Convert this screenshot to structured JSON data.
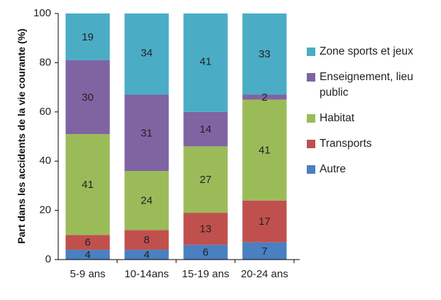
{
  "chart_data": {
    "type": "stacked_bar",
    "y_label": "Part dans les accidents de la vie courante (%)",
    "categories": [
      "5-9 ans",
      "10-14ans",
      "15-19 ans",
      "20-24 ans"
    ],
    "series": [
      {
        "name": "Autre",
        "color": "#4a7fc1",
        "values": [
          4,
          4,
          6,
          7
        ]
      },
      {
        "name": "Transports",
        "color": "#c0504d",
        "values": [
          6,
          8,
          13,
          17
        ]
      },
      {
        "name": "Habitat",
        "color": "#9bbb59",
        "values": [
          41,
          24,
          27,
          41
        ]
      },
      {
        "name": "Enseignement, lieu public",
        "color": "#8064a2",
        "values": [
          30,
          31,
          14,
          2
        ]
      },
      {
        "name": "Zone sports et jeux",
        "color": "#4bacc6",
        "values": [
          19,
          34,
          41,
          33
        ]
      }
    ],
    "ylim": [
      0,
      100
    ],
    "yticks": [
      0,
      20,
      40,
      60,
      80,
      100
    ],
    "legend": "right",
    "legend_order": "reversed",
    "grid": false
  }
}
